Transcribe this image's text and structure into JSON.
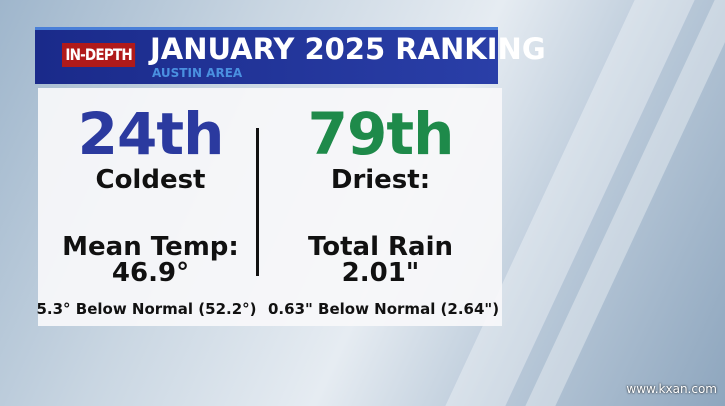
{
  "header": {
    "badge": "IN-DEPTH",
    "title": "JANUARY 2025 RANKING",
    "subtitle": "AUSTIN AREA"
  },
  "left": {
    "rank": "24th",
    "label": "Coldest",
    "metric": "Mean Temp:",
    "value": "46.9°",
    "note": "5.3° Below Normal (52.2°)",
    "color": "#2b3a9f"
  },
  "right": {
    "rank": "79th",
    "label": "Driest:",
    "metric": "Total Rain",
    "value": "2.01\"",
    "note": "0.63\" Below Normal (2.64\")",
    "color": "#1e8a4a"
  },
  "watermark": "www.kxan.com"
}
